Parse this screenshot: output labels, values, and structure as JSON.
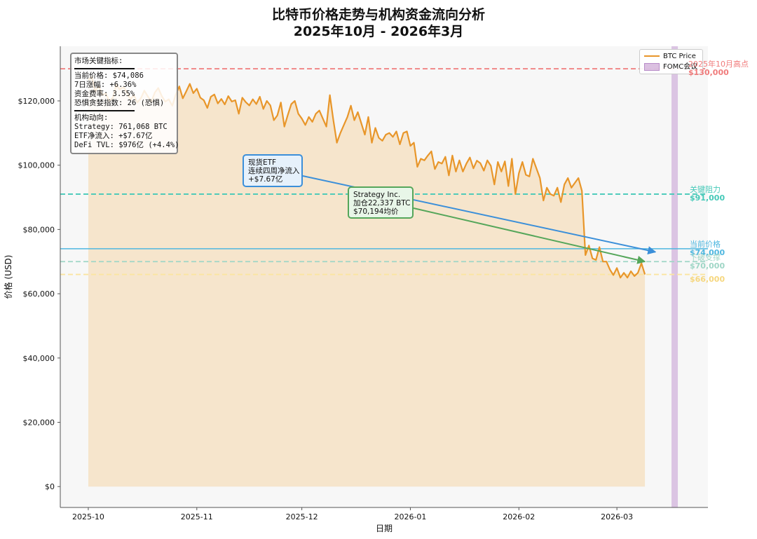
{
  "chart_data": {
    "type": "line",
    "title": "比特币价格走势与机构资金流向分析",
    "subtitle": "2025年10月 - 2026年3月",
    "xlabel": "日期",
    "ylabel": "价格 (USD)",
    "ylim": [
      -6500,
      137000
    ],
    "yticks": [
      0,
      20000,
      40000,
      60000,
      80000,
      100000,
      120000
    ],
    "ytick_labels": [
      "$0",
      "$20,000",
      "$40,000",
      "$60,000",
      "$80,000",
      "$100,000",
      "$120,000"
    ],
    "xticks": [
      "2025-10-01",
      "2025-11-01",
      "2025-12-01",
      "2026-01-01",
      "2026-02-01",
      "2026-03-01"
    ],
    "xtick_labels": [
      "2025-10",
      "2025-11",
      "2025-12",
      "2026-01",
      "2026-02",
      "2026-03"
    ],
    "xlim": [
      "2025-09-23",
      "2026-03-27"
    ],
    "grid": false,
    "legend_position": "top-right",
    "series": [
      {
        "name": "BTC Price",
        "color": "#e8962a",
        "start_date": "2025-10-01",
        "values": [
          126500,
          127500,
          123000,
          124500,
          121800,
          122400,
          120000,
          121000,
          125000,
          123600,
          124300,
          122800,
          120500,
          121800,
          119500,
          120800,
          123200,
          121400,
          119800,
          122600,
          124000,
          121500,
          119800,
          120500,
          118500,
          122000,
          124500,
          120800,
          123000,
          125300,
          122400,
          123800,
          121000,
          120200,
          117800,
          121300,
          122000,
          119200,
          120600,
          118900,
          121500,
          119800,
          120200,
          116000,
          121000,
          119600,
          118600,
          120500,
          119000,
          121300,
          117500,
          120000,
          118600,
          114000,
          115500,
          119500,
          112000,
          115600,
          119000,
          120000,
          116000,
          114500,
          112500,
          115000,
          113500,
          116000,
          117000,
          114500,
          112000,
          121800,
          114000,
          107000,
          110000,
          112500,
          115000,
          118500,
          114000,
          116500,
          113000,
          109500,
          115000,
          107000,
          111600,
          108500,
          107600,
          109500,
          110000,
          108800,
          110500,
          106500,
          110000,
          110500,
          106000,
          107000,
          99500,
          102000,
          101500,
          103000,
          104300,
          98800,
          101000,
          100500,
          102600,
          96800,
          103000,
          98000,
          101500,
          98000,
          100500,
          102400,
          99000,
          101400,
          100600,
          98300,
          101500,
          99800,
          94000,
          101000,
          98000,
          101200,
          93500,
          102000,
          91000,
          97500,
          101000,
          97000,
          96500,
          102000,
          99000,
          96000,
          89000,
          93000,
          91000,
          90500,
          93000,
          88500,
          94000,
          96000,
          93000,
          94500,
          96000,
          92000,
          72000,
          75000,
          71000,
          70500,
          74500,
          70000,
          70000,
          67500,
          65800,
          68000,
          65000,
          66500,
          65000,
          67000,
          65500,
          66500,
          69500,
          66000
        ]
      }
    ],
    "reference_lines": [
      {
        "label": "2025年10月高点",
        "value": 130000,
        "value_label": "$130,000",
        "color": "#f07b7b",
        "style": "dashed"
      },
      {
        "label": "关键阻力",
        "value": 91000,
        "value_label": "$91,000",
        "color": "#45c9b8",
        "style": "dashed"
      },
      {
        "label": "当前价格",
        "value": 74000,
        "value_label": "$74,000",
        "color": "#4fb7e0",
        "style": "solid"
      },
      {
        "label": "下破支撑",
        "value": 70000,
        "value_label": "$70,000",
        "color": "#9fd6c6",
        "style": "dashed"
      },
      {
        "label": "",
        "value": 66000,
        "value_label": "$66,000",
        "color": "#fbe5a0",
        "style": "dashed"
      }
    ],
    "shaded_regions": [
      {
        "name": "FOMC会议",
        "start": "2026-03-17",
        "end": "2026-03-18",
        "color": "#c59bd3"
      }
    ],
    "annotations": [
      {
        "lines": [
          "现货ETF",
          "连续四周净流入",
          "+$7.67亿"
        ],
        "arrow_to": {
          "date": "2026-03-12",
          "value": 73000
        },
        "color": "#3b8fd9"
      },
      {
        "lines": [
          "Strategy Inc.",
          "加仓22,337 BTC",
          "$70,194均价"
        ],
        "arrow_to": {
          "date": "2026-03-09",
          "value": 70000
        },
        "color": "#55a65a"
      }
    ],
    "info_box": {
      "title": "市场关键指标:",
      "lines": [
        "当前价格: $74,086",
        "7日涨幅: +6.36%",
        "资金费率: 3.55%",
        "恐惧贪婪指数: 26 (恐惧)"
      ],
      "section_title": "机构动向:",
      "section_lines": [
        "Strategy: 761,068 BTC",
        "ETF净流入: +$7.67亿",
        "DeFi TVL: $976亿 (+4.4%)"
      ]
    }
  },
  "legend": {
    "items": [
      {
        "label": "BTC Price"
      },
      {
        "label": "FOMC会议"
      }
    ]
  }
}
